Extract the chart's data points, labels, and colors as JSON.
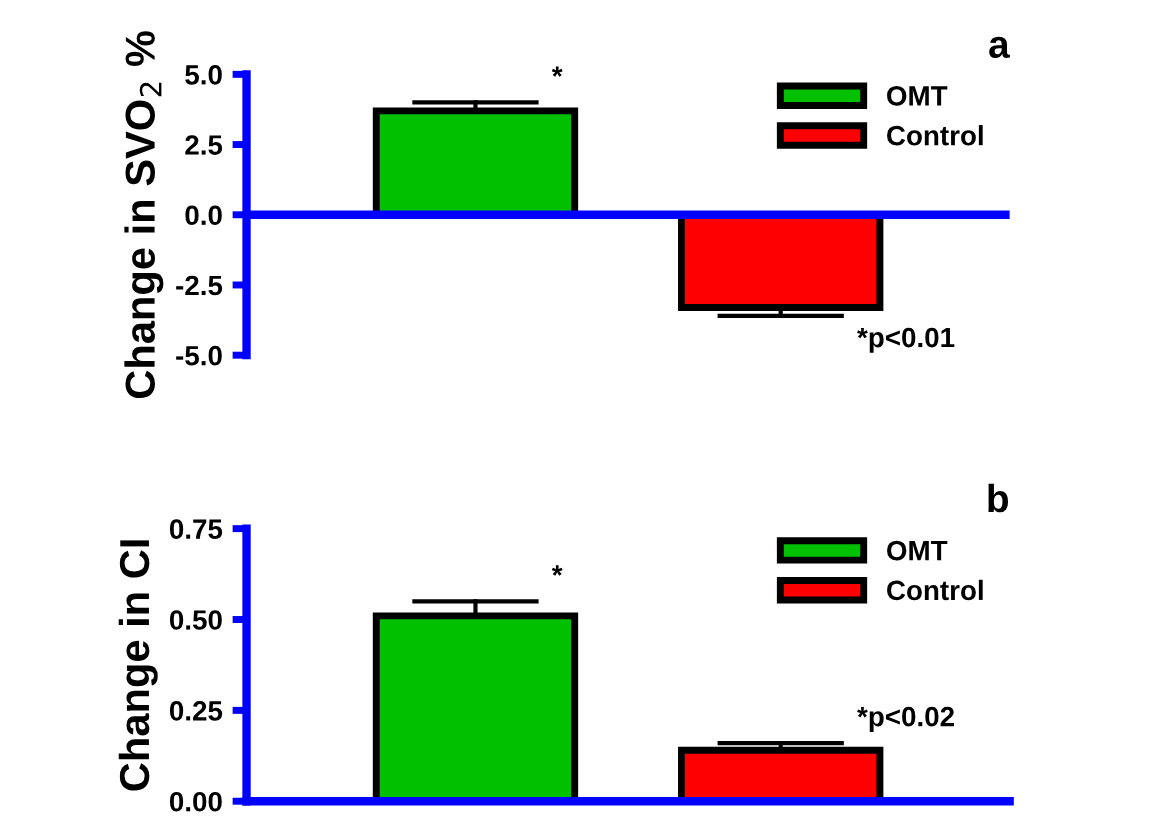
{
  "chart_data": [
    {
      "type": "bar",
      "title": "a",
      "ylabel": "Change in SVO$_{2}$ %",
      "categories": [
        null,
        null
      ],
      "series": [
        {
          "name": "OMT",
          "color": "#00c000",
          "values": [
            3.7,
            null
          ],
          "errors": [
            [
              3.7,
              4.0
            ],
            null
          ]
        },
        {
          "name": "Control",
          "color": "#ff0000",
          "values": [
            null,
            -3.3
          ],
          "errors": [
            null,
            [
              -3.6,
              -3.3
            ]
          ]
        }
      ],
      "ylim": [
        -5.0,
        5.0
      ],
      "yticks": [
        {
          "value": -5.0,
          "label": "-5.0"
        },
        {
          "value": -2.5,
          "label": "-2.5"
        },
        {
          "value": 0.0,
          "label": "0.0"
        },
        {
          "value": 2.5,
          "label": "2.5"
        },
        {
          "value": 5.0,
          "label": "5.0"
        }
      ],
      "annotations": [
        "*",
        "*p<0.01"
      ],
      "legend": "top right",
      "grid": false,
      "tick_labels": "y",
      "ref_lines": [
        {
          "axis": "y",
          "value": 0,
          "color": "#0000ff"
        }
      ]
    },
    {
      "type": "bar",
      "title": "b",
      "ylabel": "Change in CI",
      "categories": [
        null,
        null
      ],
      "series": [
        {
          "name": "OMT",
          "color": "#00c000",
          "values": [
            0.51,
            null
          ],
          "errors": [
            [
              0.51,
              0.55
            ],
            null
          ]
        },
        {
          "name": "Control",
          "color": "#ff0000",
          "values": [
            null,
            0.14
          ],
          "errors": [
            null,
            [
              0.14,
              0.16
            ]
          ]
        }
      ],
      "ylim": [
        0.0,
        0.75
      ],
      "yticks": [
        {
          "value": 0.0,
          "label": "0.00"
        },
        {
          "value": 0.25,
          "label": "0.25"
        },
        {
          "value": 0.5,
          "label": "0.50"
        },
        {
          "value": 0.75,
          "label": "0.75"
        }
      ],
      "annotations": [
        "*",
        "*p<0.02"
      ],
      "legend": "top right",
      "grid": false,
      "tick_labels": "y"
    }
  ]
}
